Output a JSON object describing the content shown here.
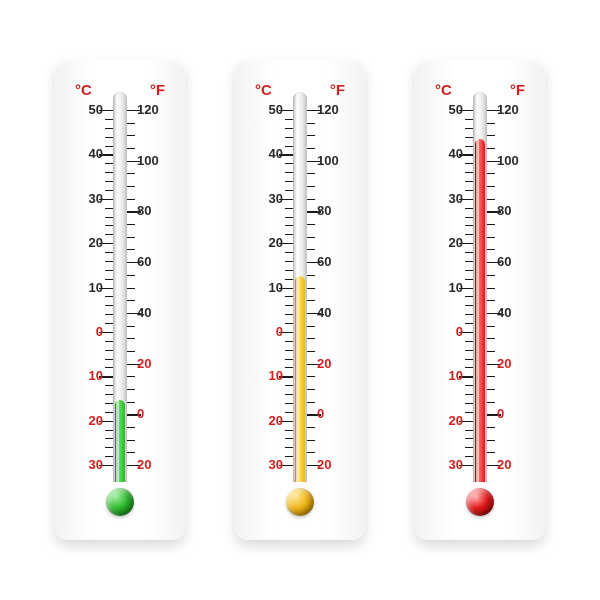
{
  "type": "infographic",
  "background_color": "#ffffff",
  "thermometer_body_color": "#f7f7f7",
  "tube_color": "#e5e5e5",
  "dark_label_color": "#2a2a2a",
  "red_label_color": "#d02020",
  "tick_color": "#1a1a1a",
  "unit_labels": {
    "celsius": "°C",
    "fahrenheit": "°F"
  },
  "celsius_scale": {
    "min": -30,
    "max": 50,
    "majors": [
      50,
      40,
      30,
      20,
      10,
      0,
      -10,
      -20,
      -30
    ],
    "minor_step": 2,
    "red_below": 0
  },
  "fahrenheit_scale": {
    "min": -20,
    "max": 120,
    "majors": [
      120,
      100,
      80,
      60,
      40,
      20,
      0,
      -20
    ],
    "minor_step": 5,
    "red_below": 20
  },
  "thermometers": [
    {
      "id": "cold",
      "fluid_color": "#2db82d",
      "fluid_gradient": "linear-gradient(to right,#1a8a1a,#5de05d 40%,#2db82d)",
      "bulb_gradient": "radial-gradient(circle at 35% 30%, #9cf09c, #2db82d 45%, #0f6f0f 100%)",
      "celsius_value": -15,
      "fahrenheit_value": 5
    },
    {
      "id": "mild",
      "fluid_color": "#f0b414",
      "fluid_gradient": "linear-gradient(to right,#c08800,#ffe060 40%,#f0b414)",
      "bulb_gradient": "radial-gradient(circle at 35% 30%, #ffe890, #f0b414 45%, #a07000 100%)",
      "celsius_value": 13,
      "fahrenheit_value": 55
    },
    {
      "id": "hot",
      "fluid_color": "#e11818",
      "fluid_gradient": "linear-gradient(to right,#a00000,#ff6a6a 40%,#e11818)",
      "bulb_gradient": "radial-gradient(circle at 35% 30%, #ffb0b0, #e11818 45%, #7a0000 100%)",
      "celsius_value": 44,
      "fahrenheit_value": 111
    }
  ]
}
